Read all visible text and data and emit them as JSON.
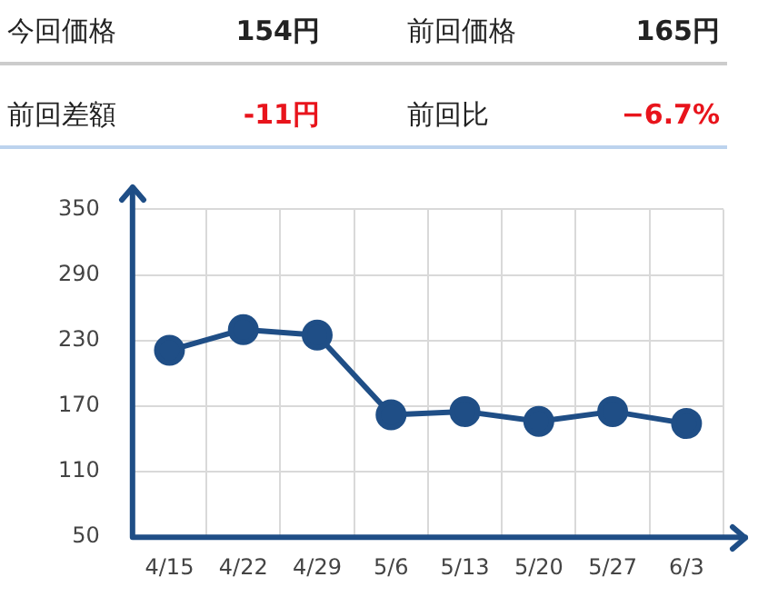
{
  "chart_data": {
    "type": "line",
    "annotations": [
      "今回価格",
      "154円",
      "前回価格",
      "165円",
      "前回差額",
      "-11円",
      "前回比",
      "−6.7%"
    ],
    "categories": [
      "4/15",
      "4/22",
      "4/29",
      "5/6",
      "5/13",
      "5/20",
      "5/27",
      "6/3"
    ],
    "series": [
      {
        "color": "#1f4e86",
        "values": [
          221,
          240,
          235,
          162,
          165,
          156,
          165,
          154
        ]
      }
    ],
    "ylim": [
      50,
      350
    ],
    "yticks": [
      50,
      110,
      170,
      230,
      290,
      350
    ],
    "grid": true,
    "legend": false,
    "marker": "circle",
    "line_style": "solid"
  }
}
